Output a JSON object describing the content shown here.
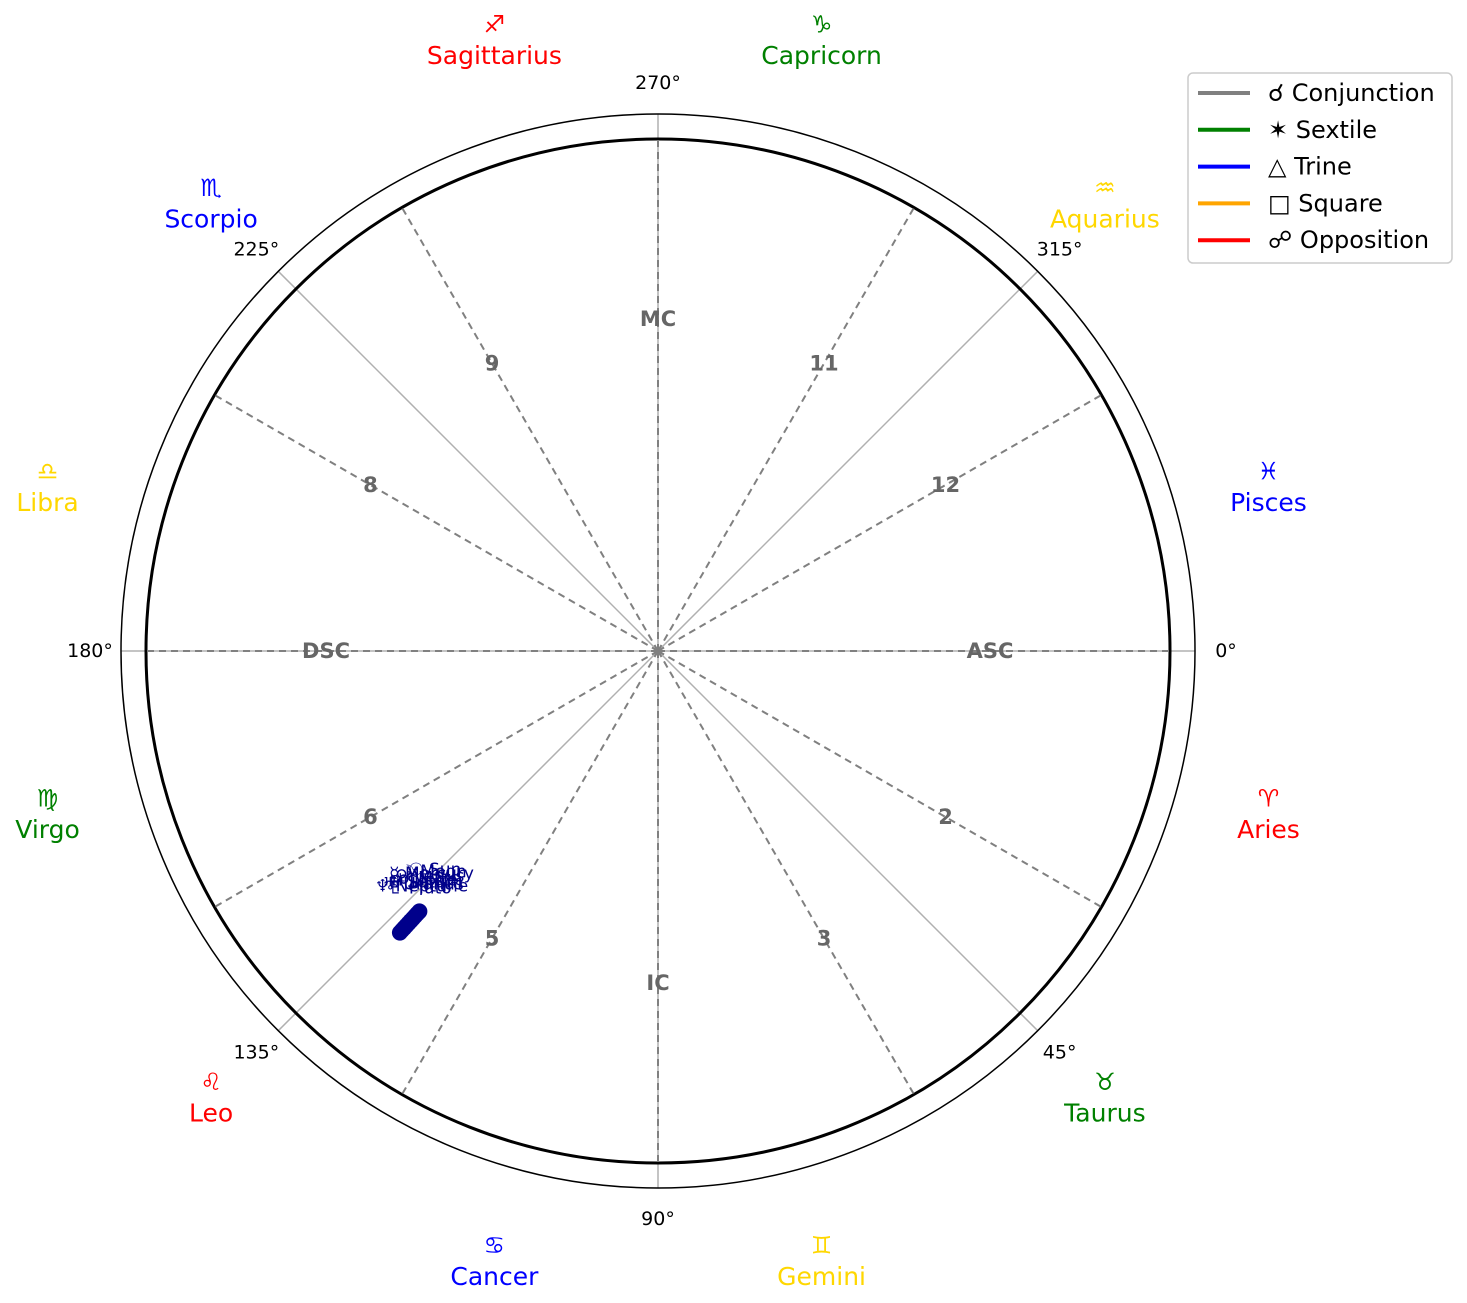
{
  "chart_data": {
    "type": "polar",
    "degree_ticks": [
      "0°",
      "45°",
      "90°",
      "135°",
      "180°",
      "225°",
      "270°",
      "315°"
    ],
    "signs": [
      {
        "symbol": "♈",
        "name": "Aries",
        "color": "#ff0000"
      },
      {
        "symbol": "♉",
        "name": "Taurus",
        "color": "#008000"
      },
      {
        "symbol": "♊",
        "name": "Gemini",
        "color": "#ffd700"
      },
      {
        "symbol": "♋",
        "name": "Cancer",
        "color": "#0000ff"
      },
      {
        "symbol": "♌",
        "name": "Leo",
        "color": "#ff0000"
      },
      {
        "symbol": "♍",
        "name": "Virgo",
        "color": "#008000"
      },
      {
        "symbol": "♎",
        "name": "Libra",
        "color": "#ffd700"
      },
      {
        "symbol": "♏",
        "name": "Scorpio",
        "color": "#0000ff"
      },
      {
        "symbol": "♐",
        "name": "Sagittarius",
        "color": "#ff0000"
      },
      {
        "symbol": "♑",
        "name": "Capricorn",
        "color": "#008000"
      },
      {
        "symbol": "♒",
        "name": "Aquarius",
        "color": "#ffd700"
      },
      {
        "symbol": "♓",
        "name": "Pisces",
        "color": "#0000ff"
      }
    ],
    "houses": [
      {
        "label": "ASC",
        "angle": 0
      },
      {
        "label": "2",
        "angle": 30
      },
      {
        "label": "3",
        "angle": 60
      },
      {
        "label": "IC",
        "angle": 90
      },
      {
        "label": "5",
        "angle": 120
      },
      {
        "label": "6",
        "angle": 150
      },
      {
        "label": "DSC",
        "angle": 180
      },
      {
        "label": "8",
        "angle": 210
      },
      {
        "label": "9",
        "angle": 240
      },
      {
        "label": "MC",
        "angle": 270
      },
      {
        "label": "11",
        "angle": 300
      },
      {
        "label": "12",
        "angle": 330
      }
    ],
    "planets": [
      {
        "label": "♇ Pluto",
        "angle": 132.5
      },
      {
        "label": "♆ Neptune",
        "angle": 132.5
      },
      {
        "label": "♅ Uranus",
        "angle": 132.5
      },
      {
        "label": "♄ Saturn",
        "angle": 132.5
      },
      {
        "label": "♃ Jupiter",
        "angle": 132.5
      },
      {
        "label": "♂ Mars",
        "angle": 132.5
      },
      {
        "label": "♀ Venus",
        "angle": 132.5
      },
      {
        "label": "☿ Mercury",
        "angle": 132.5
      },
      {
        "label": "☽ Moon",
        "angle": 132.5
      },
      {
        "label": "☉ Sun",
        "angle": 132.5
      }
    ],
    "legend": [
      {
        "label": "☌ Conjunction",
        "color": "#808080"
      },
      {
        "label": "✶ Sextile",
        "color": "#008000"
      },
      {
        "label": "△ Trine",
        "color": "#0000ff"
      },
      {
        "label": "□ Square",
        "color": "#ffa500"
      },
      {
        "label": "☍ Opposition",
        "color": "#ff0000"
      }
    ],
    "legend_position": "top-right",
    "grid": true
  }
}
